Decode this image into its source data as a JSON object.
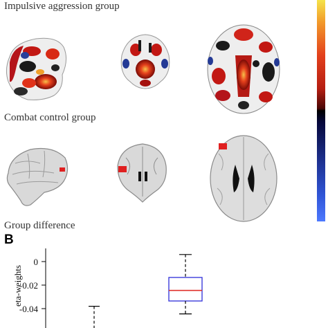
{
  "headings": {
    "impulsive": "Impulsive aggression group",
    "control": "Combat control group",
    "difference": "Group difference"
  },
  "colorbar": {
    "top_color": "#f5e34a",
    "mid_color": "#000000",
    "bottom_color": "#4d79ff"
  },
  "panel_b": {
    "label": "B",
    "ylabel": "eta-weights"
  },
  "chart_data": {
    "type": "box",
    "ylim": [
      -0.052,
      0.006
    ],
    "yticks": [
      0,
      -0.02,
      -0.04
    ],
    "ytick_labels": [
      "0",
      "-0.02",
      "-0.04"
    ],
    "boxes": [
      {
        "whisker_high": -0.038,
        "note": "partially visible, lower part cropped"
      },
      {
        "whisker_high": 0.006,
        "q3": -0.0135,
        "median": -0.0245,
        "q1": -0.0335,
        "whisker_low": -0.0445
      }
    ],
    "box_color": "#3b3bdb",
    "median_color": "#e0302a"
  }
}
